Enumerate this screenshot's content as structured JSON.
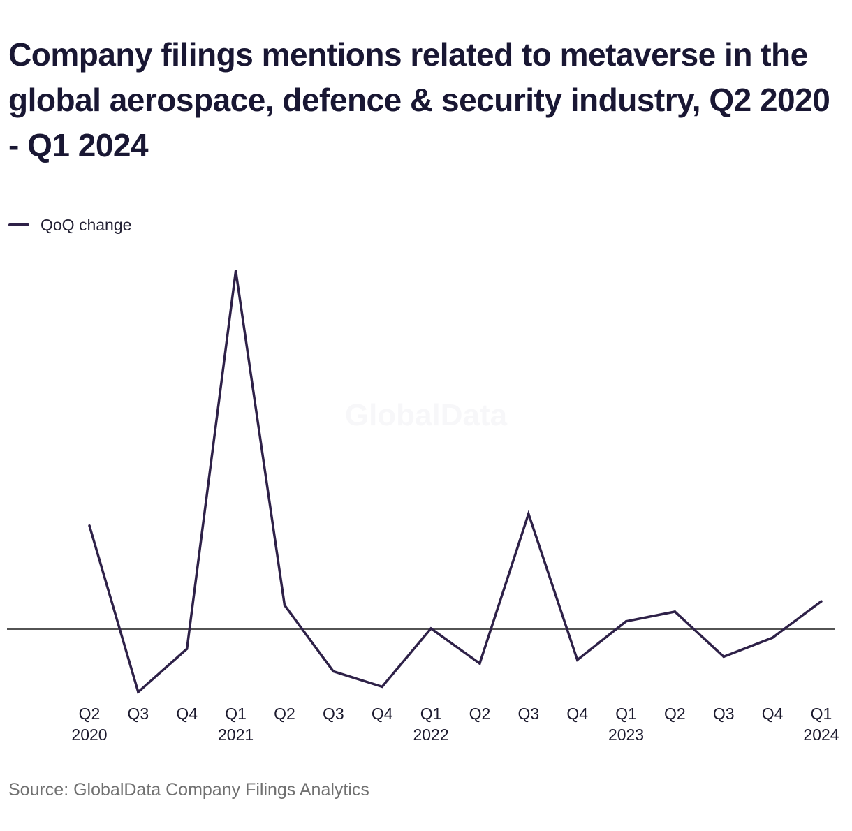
{
  "title": "Company filings mentions related to metaverse in the global aerospace, defence & security industry, Q2 2020 - Q1 2024",
  "legend": {
    "label": "QoQ change",
    "color": "#2e2148"
  },
  "watermark": "GlobalData",
  "source": "Source: GlobalData Company Filings Analytics",
  "colors": {
    "series": "#2e2148",
    "zero_line": "#1a1a1a",
    "text": "#191733",
    "source_text": "#707070"
  },
  "chart_data": {
    "type": "line",
    "title": "Company filings mentions related to metaverse in the global aerospace, defence & security industry, Q2 2020 - Q1 2024",
    "xlabel": "",
    "ylabel": "",
    "grid": false,
    "legend_position": "top-left",
    "categories": [
      "Q2 2020",
      "Q3 2020",
      "Q4 2020",
      "Q1 2021",
      "Q2 2021",
      "Q3 2021",
      "Q4 2021",
      "Q1 2022",
      "Q2 2022",
      "Q3 2022",
      "Q4 2022",
      "Q1 2023",
      "Q2 2023",
      "Q3 2023",
      "Q4 2023",
      "Q1 2024"
    ],
    "tick_labels": [
      {
        "line1": "Q2",
        "line2": "2020"
      },
      {
        "line1": "Q3",
        "line2": ""
      },
      {
        "line1": "Q4",
        "line2": ""
      },
      {
        "line1": "Q1",
        "line2": "2021"
      },
      {
        "line1": "Q2",
        "line2": ""
      },
      {
        "line1": "Q3",
        "line2": ""
      },
      {
        "line1": "Q4",
        "line2": ""
      },
      {
        "line1": "Q1",
        "line2": "2022"
      },
      {
        "line1": "Q2",
        "line2": ""
      },
      {
        "line1": "Q3",
        "line2": ""
      },
      {
        "line1": "Q4",
        "line2": ""
      },
      {
        "line1": "Q1",
        "line2": "2023"
      },
      {
        "line1": "Q2",
        "line2": ""
      },
      {
        "line1": "Q3",
        "line2": ""
      },
      {
        "line1": "Q4",
        "line2": ""
      },
      {
        "line1": "Q1",
        "line2": "2024"
      }
    ],
    "series": [
      {
        "name": "QoQ change",
        "values": [
          290,
          -176,
          -55,
          1003,
          67,
          -118,
          -161,
          2,
          -96,
          323,
          -86,
          22,
          49,
          -77,
          -24,
          78
        ]
      }
    ],
    "ylim": [
      -200,
      1020
    ],
    "zero_line": true
  }
}
